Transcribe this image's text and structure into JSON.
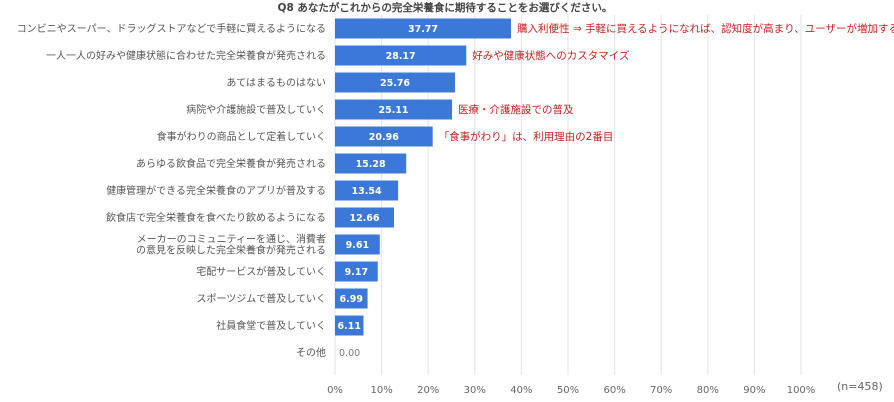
{
  "chart_data": {
    "type": "bar",
    "orientation": "horizontal",
    "title": "Q8 あなたがこれからの完全栄養食に期待することをお選びください。",
    "categories": [
      [
        "コンビニやスーパー、ドラッグストアなどで手軽に買えるようになる"
      ],
      [
        "一人一人の好みや健康状態に合わせた完全栄養食が発売される"
      ],
      [
        "あてはまるものはない"
      ],
      [
        "病院や介護施設で普及していく"
      ],
      [
        "食事がわりの商品として定着していく"
      ],
      [
        "あらゆる飲食品で完全栄養食が発売される"
      ],
      [
        "健康管理ができる完全栄養食のアプリが普及する"
      ],
      [
        "飲食店で完全栄養食を食べたり飲めるようになる"
      ],
      [
        "メーカーのコミュニティーを通じ、消費者",
        "の意見を反映した完全栄養食が発売される"
      ],
      [
        "宅配サービスが普及していく"
      ],
      [
        "スポーツジムで普及していく"
      ],
      [
        "社員食堂で普及していく"
      ],
      [
        "その他"
      ]
    ],
    "values": [
      37.77,
      28.17,
      25.76,
      25.11,
      20.96,
      15.28,
      13.54,
      12.66,
      9.61,
      9.17,
      6.99,
      6.11,
      0.0
    ],
    "value_labels": [
      "37.77",
      "28.17",
      "25.76",
      "25.11",
      "20.96",
      "15.28",
      "13.54",
      "12.66",
      "9.61",
      "9.17",
      "6.99",
      "6.11",
      "0.00"
    ],
    "xlim": [
      0,
      100
    ],
    "x_ticks": [
      "0%",
      "10%",
      "20%",
      "30%",
      "40%",
      "50%",
      "60%",
      "70%",
      "80%",
      "90%",
      "100%"
    ],
    "sample_size": "(n=458)",
    "grid": true,
    "legend": "none",
    "annotations": [
      {
        "bar_index": 0,
        "text": "購入利便性 ⇒ 手軽に買えるようになれば、認知度が高まり、ユーザーが増加する？"
      },
      {
        "bar_index": 1,
        "text": "好みや健康状態へのカスタマイズ"
      },
      {
        "bar_index": 3,
        "text": "医療・介護施設での普及"
      },
      {
        "bar_index": 4,
        "text": "「食事がわり」は、利用理由の2番目"
      }
    ],
    "colors": {
      "bar": "#3c78d8",
      "grid": "#e3e3e3",
      "annotation": "#cc1f1f"
    }
  }
}
